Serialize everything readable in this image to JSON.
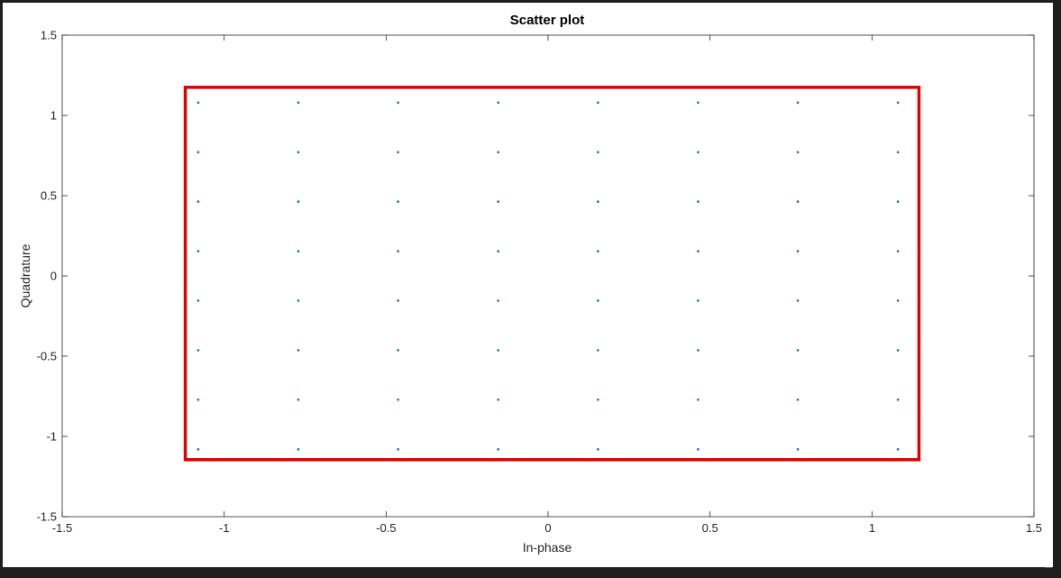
{
  "chart_data": {
    "type": "scatter",
    "title": "Scatter plot",
    "xlabel": "In-phase",
    "ylabel": "Quadrature",
    "xlim": [
      -1.5,
      1.5
    ],
    "ylim": [
      -1.5,
      1.5
    ],
    "xticks": [
      -1.5,
      -1,
      -0.5,
      0,
      0.5,
      1,
      1.5
    ],
    "yticks": [
      -1.5,
      -1,
      -0.5,
      0,
      0.5,
      1,
      1.5
    ],
    "xtick_labels": [
      "-1.5",
      "-1",
      "-0.5",
      "0",
      "0.5",
      "1",
      "1.5"
    ],
    "ytick_labels": [
      "-1.5",
      "-1",
      "-0.5",
      "0",
      "0.5",
      "1",
      "1.5"
    ],
    "grid": false,
    "box": true,
    "point_color": "#0072BD",
    "constellation_levels": [
      -1.08,
      -0.771,
      -0.463,
      -0.154,
      0.154,
      0.463,
      0.771,
      1.08
    ],
    "highlight_rect": {
      "x": [
        -1.12,
        1.145
      ],
      "y": [
        -1.145,
        1.175
      ],
      "color": "#e00000"
    }
  },
  "window": {
    "resize_glyph": "◢"
  }
}
